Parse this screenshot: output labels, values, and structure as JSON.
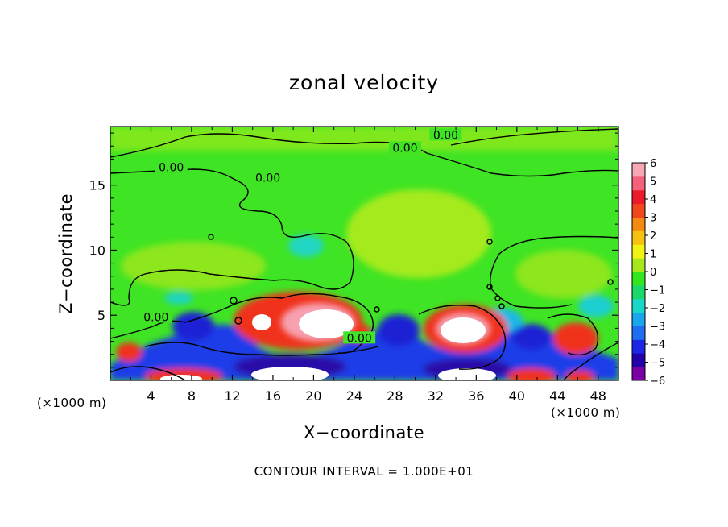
{
  "chart_data": {
    "type": "heatmap",
    "title": "zonal velocity",
    "xlabel": "X−coordinate",
    "ylabel": "Z−coordinate",
    "x_unit_label": "(×1000 m)",
    "xlim": [
      0,
      50
    ],
    "ylim": [
      0,
      19.5
    ],
    "xticks": [
      "4",
      "8",
      "12",
      "16",
      "20",
      "24",
      "28",
      "32",
      "36",
      "40",
      "44",
      "48"
    ],
    "yticks": [
      "5",
      "10",
      "15"
    ],
    "note": "CONTOUR INTERVAL = 1.000E+01",
    "colorbar": {
      "range": [
        -6,
        6
      ],
      "tick_labels": [
        "6",
        "5",
        "4",
        "3",
        "2",
        "1",
        "0",
        "−1",
        "−2",
        "−3",
        "−4",
        "−5",
        "−6"
      ],
      "colors": [
        "#7a00a6",
        "#2200aa",
        "#1d24e6",
        "#1f6df2",
        "#18a6ee",
        "#17d8c8",
        "#1bd86a",
        "#33e61e",
        "#a7e81a",
        "#f2f213",
        "#f6c211",
        "#f58a12",
        "#f2461c",
        "#ea1a2a",
        "#f5607a",
        "#f7a8b4"
      ]
    },
    "contour_labels": [
      {
        "text": "0.00",
        "x": 33,
        "y": 18.8
      },
      {
        "text": "0.00",
        "x": 29,
        "y": 17.8
      },
      {
        "text": "0.00",
        "x": 6,
        "y": 16.3
      },
      {
        "text": "0.00",
        "x": 15.5,
        "y": 15.5
      },
      {
        "text": "0.00",
        "x": 4.5,
        "y": 4.8
      },
      {
        "text": "0.00",
        "x": 24.5,
        "y": 3.2
      }
    ]
  }
}
